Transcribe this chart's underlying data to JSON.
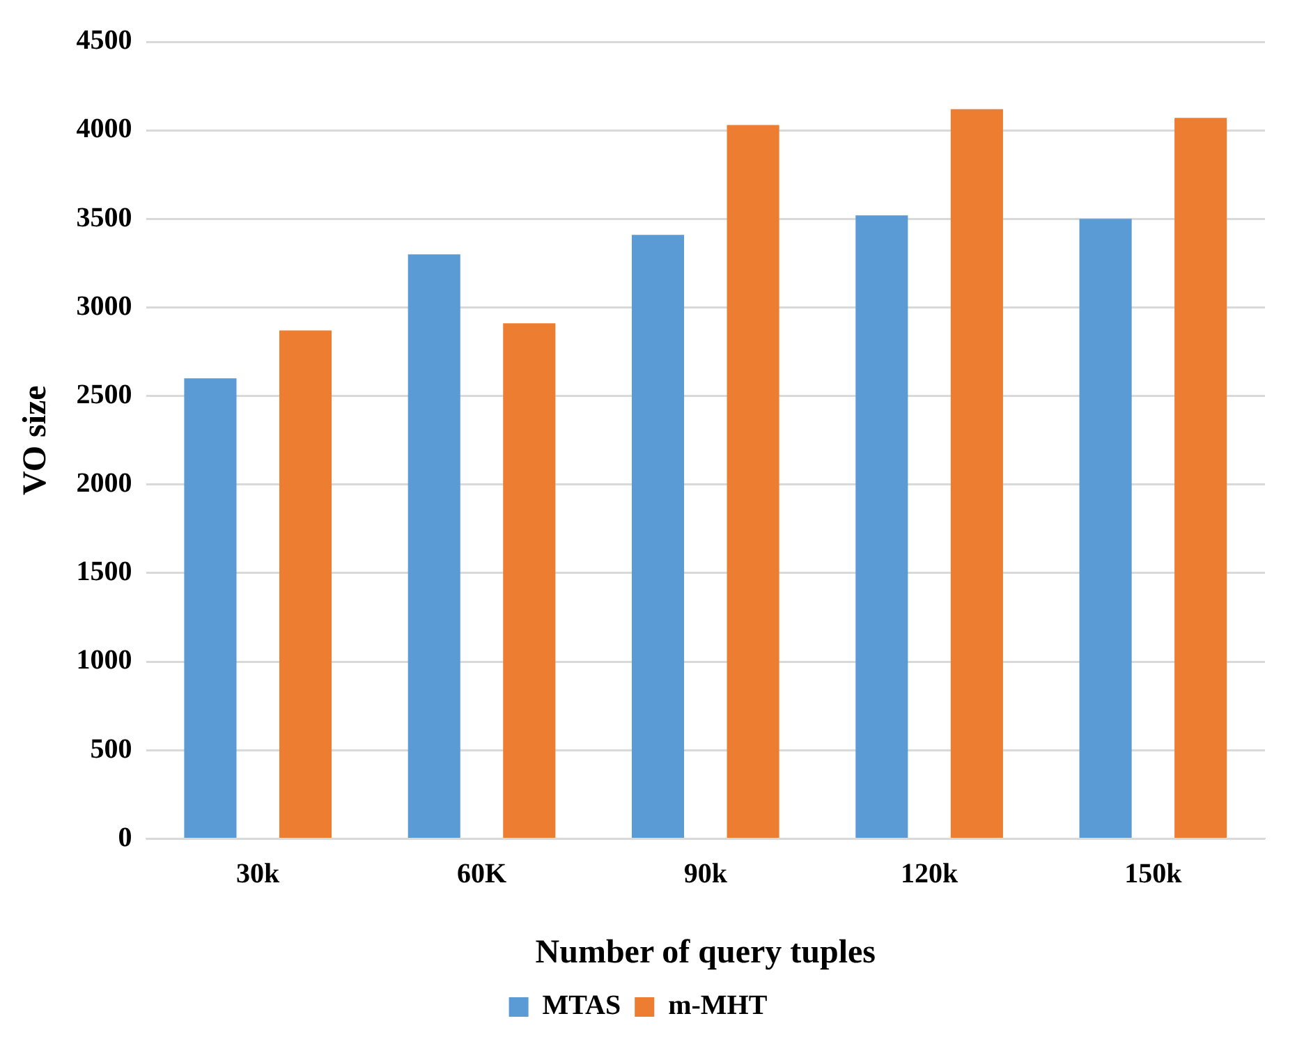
{
  "chart_data": {
    "type": "bar",
    "xlabel": "Number of query tuples",
    "ylabel": "VO size",
    "categories": [
      "30k",
      "60K",
      "90k",
      "120k",
      "150k"
    ],
    "series": [
      {
        "name": "MTAS",
        "color": "#5b9bd5",
        "values": [
          2600,
          3300,
          3410,
          3520,
          3500
        ]
      },
      {
        "name": "m-MHT",
        "color": "#ed7d31",
        "values": [
          2870,
          2910,
          4030,
          4120,
          4070
        ]
      }
    ],
    "ylim": [
      0,
      4500
    ],
    "yticks": [
      0,
      500,
      1000,
      1500,
      2000,
      2500,
      3000,
      3500,
      4000,
      4500
    ],
    "grid": "y",
    "legend": "bottom"
  }
}
